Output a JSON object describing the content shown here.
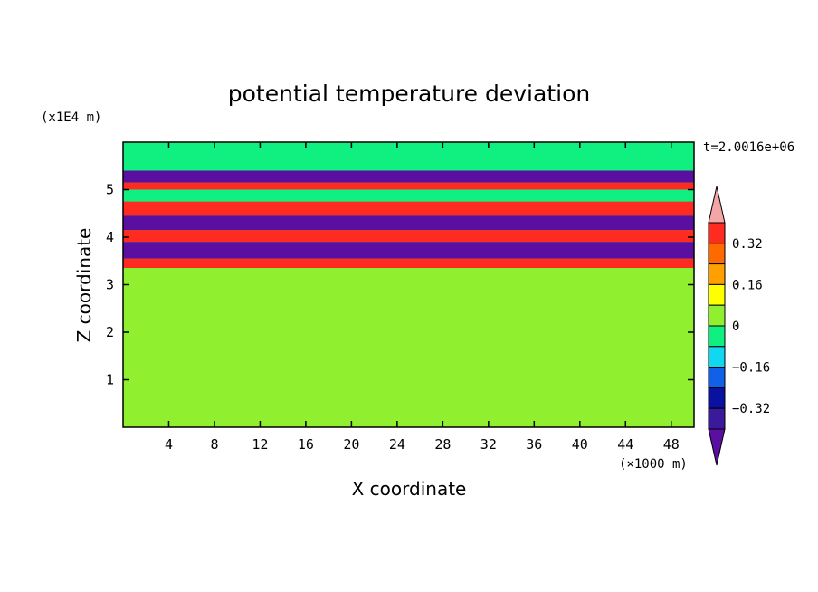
{
  "chart_data": {
    "type": "heatmap",
    "title": "potential temperature deviation",
    "xlabel": "X coordinate",
    "ylabel": "Z coordinate",
    "x_unit": "(×1000 m)",
    "y_unit": "(x1E4 m)",
    "time_label": "t=2.0016e+06",
    "xlim": [
      0,
      50
    ],
    "ylim": [
      0,
      6
    ],
    "x_ticks": [
      4,
      8,
      12,
      16,
      20,
      24,
      28,
      32,
      36,
      40,
      44,
      48
    ],
    "y_ticks": [
      1,
      2,
      3,
      4,
      5
    ],
    "x_tick_labels": [
      "4",
      "8",
      "12",
      "16",
      "20",
      "24",
      "28",
      "32",
      "36",
      "40",
      "44",
      "48"
    ],
    "y_tick_labels": [
      "1",
      "2",
      "3",
      "4",
      "5"
    ],
    "colorbar": {
      "levels": [
        -0.4,
        -0.32,
        -0.24,
        -0.16,
        -0.08,
        0,
        0.08,
        0.16,
        0.24,
        0.32,
        0.4
      ],
      "labels": [
        "0.32",
        "0.16",
        "0",
        "−0.16",
        "−0.32"
      ],
      "label_values": [
        0.32,
        0.16,
        0,
        -0.16,
        -0.32
      ],
      "colors": [
        "#5a0fa0",
        "#3a1a9a",
        "#0a10a0",
        "#1060e8",
        "#10d8f0",
        "#10f080",
        "#90f030",
        "#ffff00",
        "#ffa000",
        "#ff6a00",
        "#ff2a20",
        "#f4a6a6"
      ],
      "extend": "both"
    },
    "bands": [
      {
        "z": [
          5.4,
          5.9
        ],
        "value": 0.0
      },
      {
        "z": [
          5.15,
          5.4
        ],
        "value": -0.4
      },
      {
        "z": [
          5.0,
          5.15
        ],
        "value": 0.4
      },
      {
        "z": [
          4.75,
          5.0
        ],
        "value": 0.0
      },
      {
        "z": [
          4.45,
          4.75
        ],
        "value": 0.4
      },
      {
        "z": [
          4.15,
          4.45
        ],
        "value": -0.4
      },
      {
        "z": [
          3.9,
          4.15
        ],
        "value": 0.4
      },
      {
        "z": [
          3.55,
          3.9
        ],
        "value": -0.4
      },
      {
        "z": [
          3.35,
          3.55
        ],
        "value": 0.4
      },
      {
        "z": [
          0.6,
          3.35
        ],
        "value": 0.05
      },
      {
        "z": [
          0.0,
          0.6
        ],
        "value": 0.08
      }
    ]
  }
}
